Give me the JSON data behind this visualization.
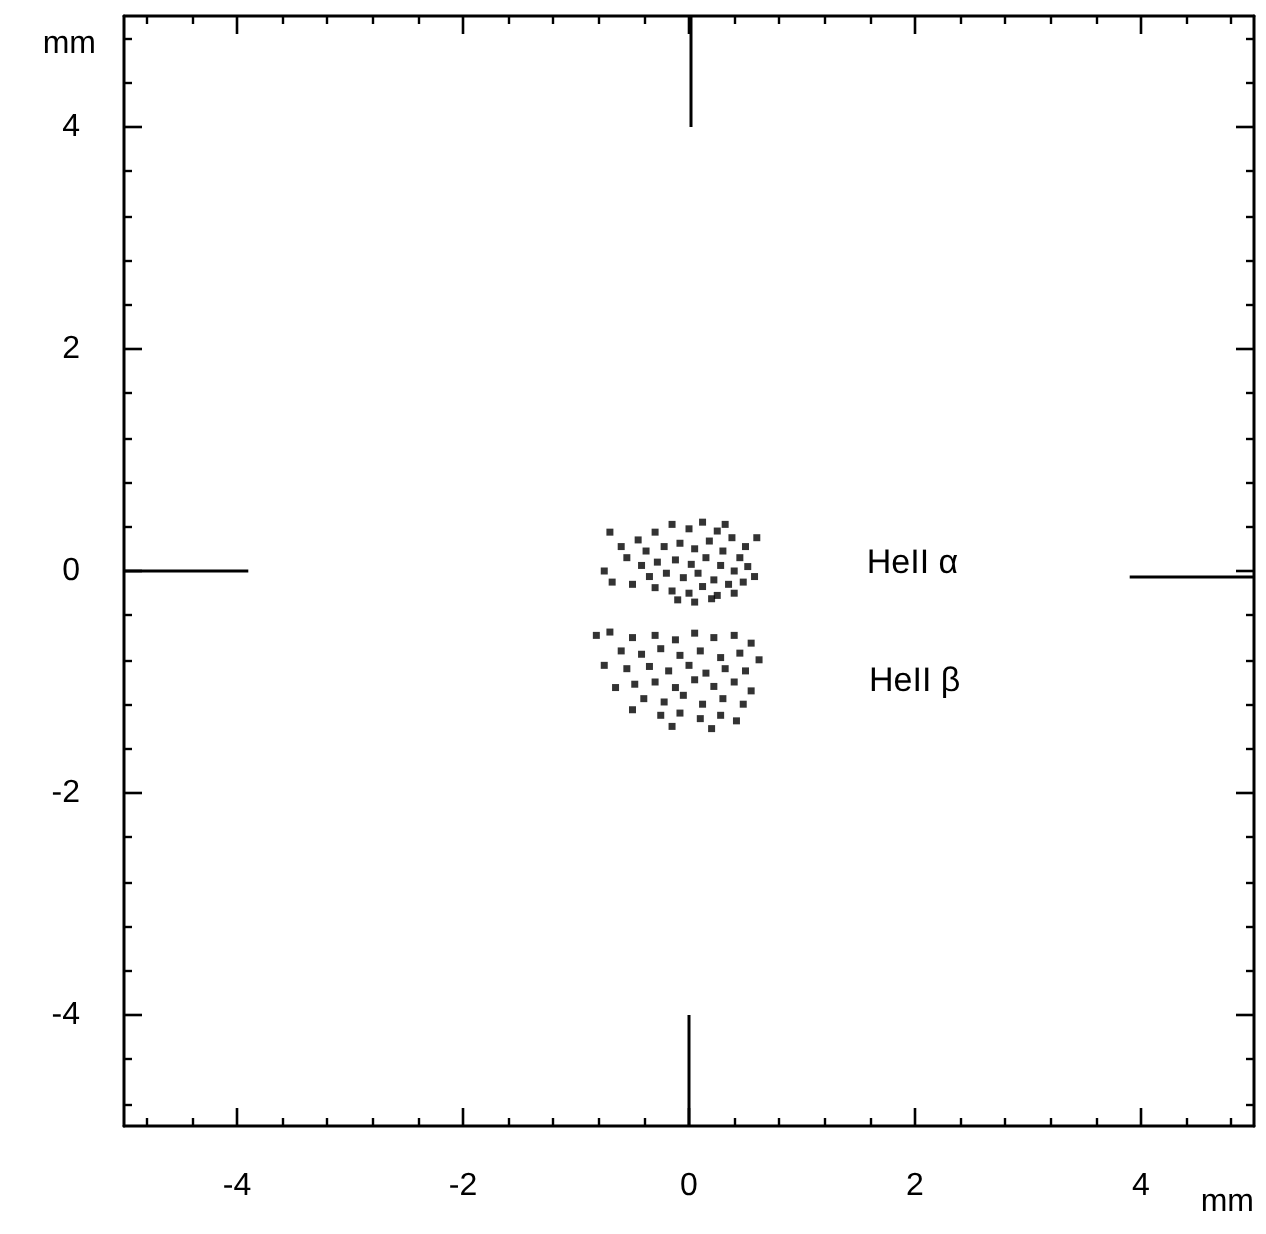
{
  "chart_data": {
    "type": "scatter",
    "xlabel": "mm",
    "ylabel": "mm",
    "xlim": [
      -5,
      5
    ],
    "ylim": [
      -5,
      5
    ],
    "xticks": [
      -4,
      -2,
      0,
      2,
      4
    ],
    "yticks": [
      -4,
      -2,
      0,
      2,
      4
    ],
    "grid": false,
    "marker": "square",
    "annotations": [
      "HeII α",
      "HeII β"
    ],
    "series": [
      {
        "color": "#000000",
        "x": [
          -0.45,
          -0.3,
          -0.15,
          0.0,
          0.12,
          0.25,
          0.38,
          0.5,
          -0.55,
          -0.38,
          -0.22,
          -0.08,
          0.05,
          0.18,
          0.3,
          0.45,
          -0.42,
          -0.28,
          -0.12,
          0.02,
          0.15,
          0.28,
          0.4,
          0.52,
          -0.35,
          -0.2,
          -0.05,
          0.08,
          0.22,
          0.35,
          0.48,
          -0.3,
          -0.15,
          0.0,
          0.12,
          0.25,
          0.4,
          -0.1,
          0.05,
          0.2,
          -0.75,
          -0.68,
          -0.6,
          -0.7,
          0.6,
          0.58,
          -0.5,
          0.32
        ],
        "values": [
          0.28,
          0.35,
          0.42,
          0.38,
          0.44,
          0.36,
          0.3,
          0.22,
          0.12,
          0.18,
          0.22,
          0.25,
          0.2,
          0.27,
          0.18,
          0.12,
          0.05,
          0.08,
          0.1,
          0.06,
          0.12,
          0.05,
          0.0,
          0.04,
          -0.05,
          -0.02,
          -0.06,
          -0.02,
          -0.08,
          -0.12,
          -0.1,
          -0.15,
          -0.18,
          -0.2,
          -0.14,
          -0.22,
          -0.2,
          -0.26,
          -0.28,
          -0.25,
          0.0,
          -0.1,
          0.22,
          0.35,
          0.3,
          -0.05,
          -0.12,
          0.42
        ]
      },
      {
        "color": "#000000",
        "x": [
          -0.7,
          -0.5,
          -0.3,
          -0.12,
          0.05,
          0.22,
          0.4,
          0.55,
          -0.6,
          -0.42,
          -0.25,
          -0.08,
          0.1,
          0.28,
          0.45,
          -0.55,
          -0.35,
          -0.18,
          0.0,
          0.15,
          0.32,
          0.5,
          -0.48,
          -0.3,
          -0.12,
          0.05,
          0.22,
          0.4,
          0.55,
          -0.4,
          -0.22,
          -0.05,
          0.12,
          0.3,
          0.48,
          -0.25,
          -0.08,
          0.1,
          0.28,
          0.42,
          -0.82,
          -0.75,
          -0.65,
          -0.5,
          0.62,
          -0.15,
          0.2
        ],
        "values": [
          -0.55,
          -0.6,
          -0.58,
          -0.62,
          -0.56,
          -0.6,
          -0.58,
          -0.65,
          -0.72,
          -0.75,
          -0.7,
          -0.76,
          -0.72,
          -0.78,
          -0.74,
          -0.88,
          -0.86,
          -0.9,
          -0.85,
          -0.92,
          -0.88,
          -0.9,
          -1.02,
          -1.0,
          -1.05,
          -0.98,
          -1.04,
          -1.0,
          -1.08,
          -1.15,
          -1.18,
          -1.12,
          -1.2,
          -1.15,
          -1.2,
          -1.3,
          -1.28,
          -1.33,
          -1.3,
          -1.35,
          -0.58,
          -0.85,
          -1.05,
          -1.25,
          -0.8,
          -1.4,
          -1.42
        ]
      }
    ]
  }
}
